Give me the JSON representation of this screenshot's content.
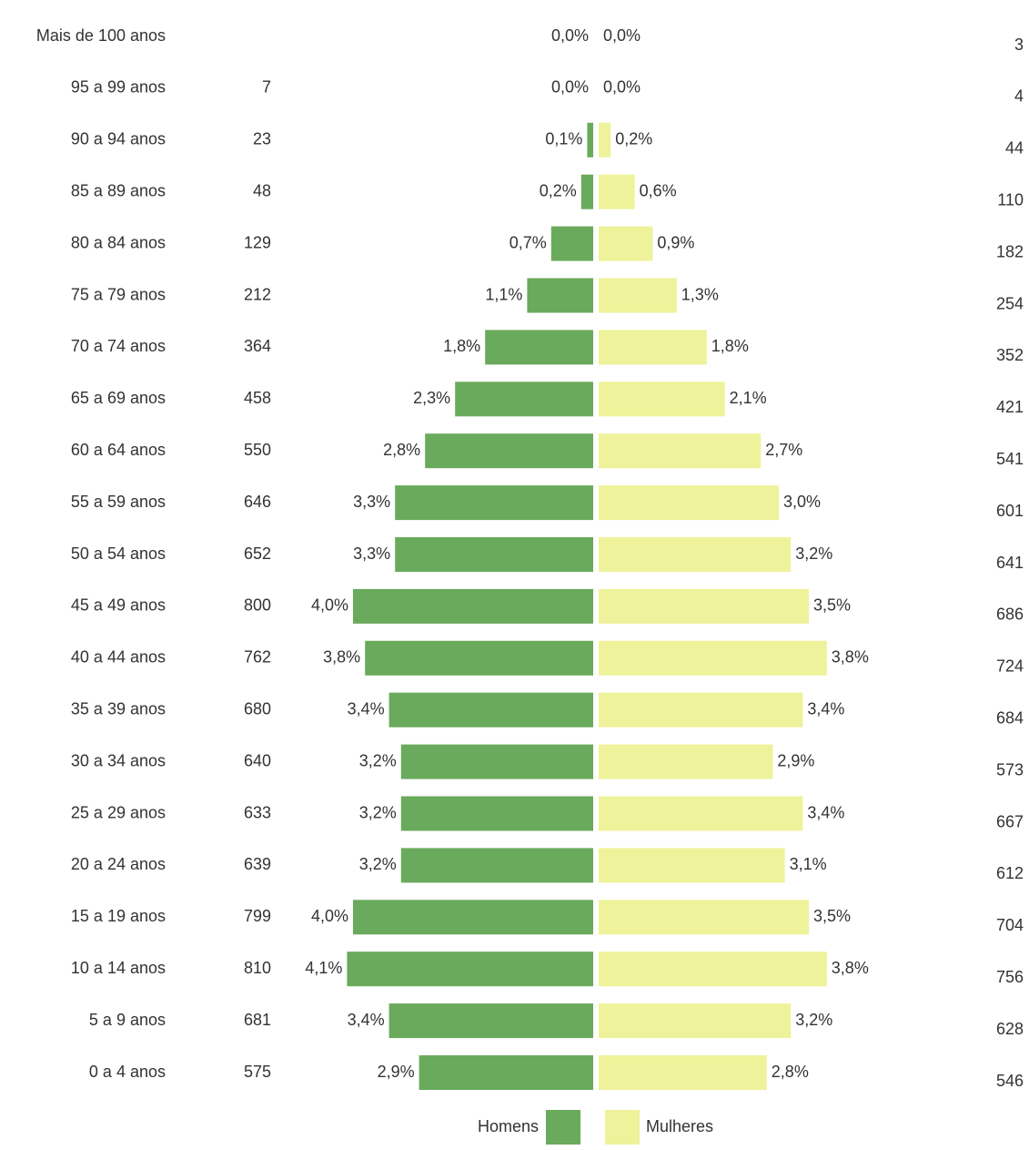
{
  "chart_data": {
    "type": "pyramid",
    "categories": [
      "Mais de 100 anos",
      "95 a 99 anos",
      "90 a 94 anos",
      "85 a 89 anos",
      "80 a 84 anos",
      "75 a 79 anos",
      "70 a 74 anos",
      "65 a 69 anos",
      "60 a 64 anos",
      "55 a 59 anos",
      "50 a 54 anos",
      "45 a 49 anos",
      "40 a 44 anos",
      "35 a 39 anos",
      "30 a 34 anos",
      "25 a 29 anos",
      "20 a 24 anos",
      "15 a 19 anos",
      "10 a 14 anos",
      "5 a 9 anos",
      "0 a 4 anos"
    ],
    "series": [
      {
        "name": "Homens",
        "color": "#6aaa5c",
        "side": "left",
        "values": [
          0.0,
          0.0,
          0.1,
          0.2,
          0.7,
          1.1,
          1.8,
          2.3,
          2.8,
          3.3,
          3.3,
          4.0,
          3.8,
          3.4,
          3.2,
          3.2,
          3.2,
          4.0,
          4.1,
          3.4,
          2.9
        ],
        "value_labels": [
          "0,0%",
          "0,0%",
          "0,1%",
          "0,2%",
          "0,7%",
          "1,1%",
          "1,8%",
          "2,3%",
          "2,8%",
          "3,3%",
          "3,3%",
          "4,0%",
          "3,8%",
          "3,4%",
          "3,2%",
          "3,2%",
          "3,2%",
          "4,0%",
          "4,1%",
          "3,4%",
          "2,9%"
        ],
        "counts": [
          null,
          7,
          23,
          48,
          129,
          212,
          364,
          458,
          550,
          646,
          652,
          800,
          762,
          680,
          640,
          633,
          639,
          799,
          810,
          681,
          575
        ]
      },
      {
        "name": "Mulheres",
        "color": "#eef29a",
        "side": "right",
        "values": [
          0.0,
          0.0,
          0.2,
          0.6,
          0.9,
          1.3,
          1.8,
          2.1,
          2.7,
          3.0,
          3.2,
          3.5,
          3.8,
          3.4,
          2.9,
          3.4,
          3.1,
          3.5,
          3.8,
          3.2,
          2.8
        ],
        "value_labels": [
          "0,0%",
          "0,0%",
          "0,2%",
          "0,6%",
          "0,9%",
          "1,3%",
          "1,8%",
          "2,1%",
          "2,7%",
          "3,0%",
          "3,2%",
          "3,5%",
          "3,8%",
          "3,4%",
          "2,9%",
          "3,4%",
          "3,1%",
          "3,5%",
          "3,8%",
          "3,2%",
          "2,8%"
        ],
        "counts": [
          3,
          4,
          44,
          110,
          182,
          254,
          352,
          421,
          541,
          601,
          641,
          686,
          724,
          684,
          573,
          667,
          612,
          704,
          756,
          628,
          546
        ]
      }
    ]
  }
}
